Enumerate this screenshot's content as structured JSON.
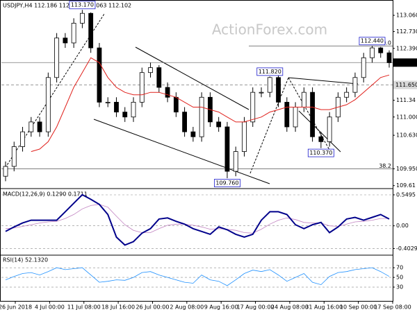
{
  "chart_data": {
    "type": "candlestick",
    "title": "USDJPY,H4 112.186 112.230 112.063 112.102",
    "watermark": "ActionForex.com",
    "categories": [
      "26 Jun 2018",
      "4 Jul 00:00",
      "11 Jul 08:00",
      "18 Jul 16:00",
      "26 Jul 00:00",
      "2 Aug 08:00",
      "9 Aug 16:00",
      "17 Aug 00:00",
      "24 Aug 08:00",
      "31 Aug 16:00",
      "10 Sep 00:00",
      "17 Sep 08:00"
    ],
    "candles": {
      "open": [
        109.8,
        110.0,
        110.4,
        110.7,
        110.9,
        110.7,
        111.8,
        112.6,
        112.5,
        112.9,
        113.1,
        112.4,
        111.3,
        111.3,
        111.1,
        111.0,
        111.3,
        111.9,
        112.0,
        111.6,
        111.4,
        111.1,
        110.7,
        110.6,
        111.4,
        110.9,
        110.8,
        109.9,
        110.3,
        110.9,
        111.5,
        111.5,
        111.8,
        111.3,
        110.8,
        111.2,
        111.5,
        110.6,
        110.5,
        111.0,
        111.4,
        111.5,
        111.8,
        112.2,
        112.4,
        112.3
      ],
      "high": [
        110.1,
        110.5,
        110.8,
        111.0,
        111.0,
        111.9,
        112.7,
        112.7,
        113.0,
        113.17,
        113.12,
        112.5,
        111.4,
        111.4,
        111.2,
        111.4,
        112.0,
        112.1,
        112.05,
        111.7,
        111.5,
        111.2,
        110.8,
        111.5,
        111.5,
        111.0,
        110.9,
        110.4,
        111.0,
        111.6,
        111.6,
        111.82,
        111.85,
        111.4,
        111.3,
        111.6,
        111.6,
        110.7,
        111.1,
        111.5,
        111.6,
        111.9,
        112.3,
        112.44,
        112.42,
        112.35
      ],
      "low": [
        109.7,
        109.9,
        110.3,
        110.6,
        110.6,
        110.6,
        111.7,
        112.4,
        112.4,
        112.8,
        112.3,
        111.2,
        111.2,
        111.0,
        110.9,
        110.9,
        111.2,
        111.8,
        111.5,
        111.3,
        111.0,
        110.6,
        110.5,
        110.5,
        110.8,
        110.7,
        109.76,
        109.8,
        110.2,
        110.8,
        111.4,
        111.4,
        111.2,
        110.7,
        110.7,
        111.1,
        110.5,
        110.37,
        110.4,
        110.9,
        111.3,
        111.4,
        111.7,
        112.1,
        112.2,
        112.0
      ],
      "close": [
        110.0,
        110.4,
        110.7,
        110.9,
        110.7,
        111.8,
        112.6,
        112.5,
        112.9,
        113.1,
        112.4,
        111.3,
        111.3,
        111.1,
        111.0,
        111.3,
        111.9,
        112.0,
        111.6,
        111.4,
        111.1,
        110.7,
        110.6,
        111.4,
        110.9,
        110.8,
        109.9,
        110.3,
        110.9,
        111.5,
        111.5,
        111.8,
        111.3,
        110.8,
        111.2,
        111.5,
        110.6,
        110.5,
        111.0,
        111.4,
        111.5,
        111.8,
        112.2,
        112.4,
        112.3,
        112.1
      ]
    },
    "candle_colors": {
      "up": "#ffffff",
      "down": "#000000"
    },
    "ylim": [
      109.55,
      113.37
    ],
    "yticks": [
      {
        "value": 113.06,
        "label": "113.060"
      },
      {
        "value": 112.73,
        "label": "112.730"
      },
      {
        "value": 112.39,
        "label": "112.390"
      },
      111.34,
      {
        "value": 111.0,
        "label": "111.000"
      },
      {
        "value": 110.63,
        "label": "110.630"
      },
      {
        "value": 109.95,
        "label": "109.950"
      },
      109.61
    ],
    "ma": {
      "color": "#e0201b",
      "values": [
        null,
        null,
        null,
        110.3,
        110.35,
        110.5,
        110.8,
        111.2,
        111.6,
        111.9,
        112.2,
        112.1,
        111.8,
        111.6,
        111.5,
        111.45,
        111.45,
        111.5,
        111.5,
        111.45,
        111.4,
        111.3,
        111.2,
        111.2,
        111.15,
        111.1,
        111.0,
        110.9,
        110.9,
        110.95,
        111.0,
        111.1,
        111.15,
        111.2,
        111.2,
        111.2,
        111.2,
        111.15,
        111.15,
        111.2,
        111.25,
        111.35,
        111.5,
        111.65,
        111.8,
        111.85
      ]
    },
    "price_markers": [
      {
        "value": 112.102,
        "label": "112.102",
        "style": "current"
      },
      {
        "value": 111.65,
        "label": "111.650",
        "style": "level"
      }
    ],
    "levels": [
      {
        "value": 112.44,
        "label": "FE 100.0"
      },
      {
        "value": 109.95,
        "label": "38.2"
      }
    ],
    "annotations": [
      {
        "value": 113.17,
        "label": "113.170"
      },
      {
        "value": 109.76,
        "label": "109.760"
      },
      {
        "value": 111.82,
        "label": "111.820"
      },
      {
        "value": 110.37,
        "label": "110.370"
      },
      {
        "value": 112.44,
        "label": "112.440"
      }
    ],
    "macd": {
      "title": "MACD(12,26,9) 0.1290 0.1711",
      "ylim": [
        -0.52,
        0.66
      ],
      "yticks": [
        0.5495,
        {
          "value": 0,
          "label": "0.00"
        },
        -0.4029
      ],
      "macd": {
        "color": "#00008b",
        "values": [
          -0.1,
          -0.02,
          0.05,
          0.1,
          0.1,
          0.1,
          0.1,
          0.25,
          0.4,
          0.55,
          0.47,
          0.38,
          0.2,
          -0.2,
          -0.34,
          -0.28,
          -0.13,
          -0.05,
          0.12,
          0.14,
          0.08,
          0.03,
          -0.05,
          -0.1,
          -0.15,
          -0.02,
          -0.07,
          -0.15,
          -0.2,
          -0.15,
          0.1,
          0.25,
          0.25,
          0.2,
          0.02,
          -0.05,
          0.02,
          0.06,
          -0.12,
          -0.02,
          0.12,
          0.15,
          0.1,
          0.15,
          0.2,
          0.12
        ]
      },
      "signal": {
        "color": "#c080c0",
        "values": [
          -0.05,
          -0.04,
          -0.01,
          0.02,
          0.05,
          0.07,
          0.08,
          0.13,
          0.2,
          0.3,
          0.36,
          0.38,
          0.33,
          0.17,
          0.02,
          -0.08,
          -0.12,
          -0.12,
          -0.05,
          0.01,
          0.03,
          0.03,
          0.01,
          -0.02,
          -0.06,
          -0.05,
          -0.06,
          -0.08,
          -0.12,
          -0.13,
          -0.06,
          0.03,
          0.1,
          0.14,
          0.11,
          0.06,
          0.05,
          0.05,
          0.0,
          -0.01,
          0.03,
          0.07,
          0.08,
          0.1,
          0.13,
          0.13
        ]
      }
    },
    "rsi": {
      "title": "RSI(14) 52.1320",
      "ylim": [
        0,
        96
      ],
      "yticks": [
        70,
        50,
        30
      ],
      "color": "#1e90ff",
      "values": [
        45,
        52,
        58,
        60,
        55,
        62,
        70,
        66,
        68,
        70,
        55,
        40,
        42,
        45,
        44,
        50,
        60,
        62,
        55,
        50,
        45,
        40,
        38,
        55,
        45,
        42,
        33,
        45,
        58,
        65,
        62,
        66,
        55,
        42,
        50,
        58,
        40,
        35,
        52,
        60,
        62,
        66,
        68,
        70,
        62,
        52
      ]
    }
  }
}
